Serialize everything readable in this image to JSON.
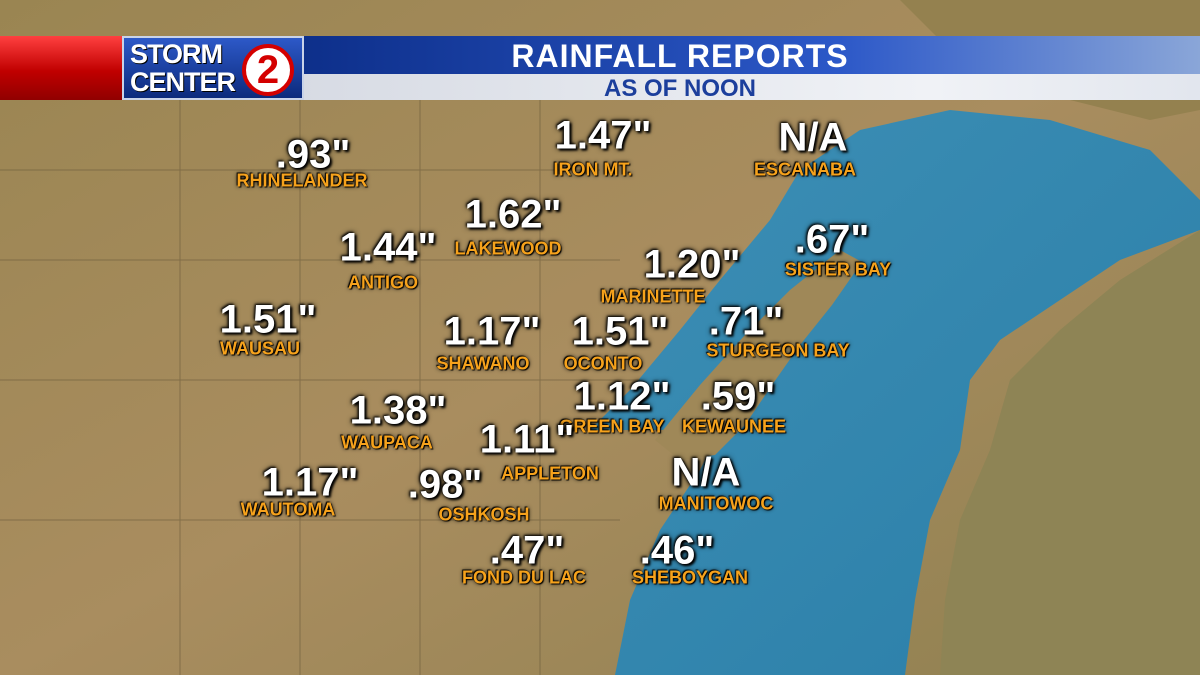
{
  "header": {
    "logo_top": "STORM",
    "logo_bottom": "CENTER",
    "logo_number": "2",
    "title": "RAINFALL REPORTS",
    "subtitle": "AS OF NOON"
  },
  "reports": [
    {
      "amount": ".93\"",
      "place": "RHINELANDER"
    },
    {
      "amount": "1.47\"",
      "place": "IRON MT."
    },
    {
      "amount": "N/A",
      "place": "ESCANABA"
    },
    {
      "amount": "1.62\"",
      "place": "LAKEWOOD"
    },
    {
      "amount": "1.44\"",
      "place": "ANTIGO"
    },
    {
      "amount": "1.20\"",
      "place": "MARINETTE"
    },
    {
      "amount": ".67\"",
      "place": "SISTER BAY"
    },
    {
      "amount": "1.51\"",
      "place": "WAUSAU"
    },
    {
      "amount": "1.17\"",
      "place": "SHAWANO"
    },
    {
      "amount": "1.51\"",
      "place": "OCONTO"
    },
    {
      "amount": ".71\"",
      "place": "STURGEON BAY"
    },
    {
      "amount": "1.38\"",
      "place": "WAUPACA"
    },
    {
      "amount": "1.12\"",
      "place": "GREEN BAY"
    },
    {
      "amount": ".59\"",
      "place": "KEWAUNEE"
    },
    {
      "amount": "1.11\"",
      "place": "APPLETON"
    },
    {
      "amount": "N/A",
      "place": "MANITOWOC"
    },
    {
      "amount": "1.17\"",
      "place": "WAUTOMA"
    },
    {
      "amount": ".98\"",
      "place": "OSHKOSH"
    },
    {
      "amount": ".47\"",
      "place": "FOND DU LAC"
    },
    {
      "amount": ".46\"",
      "place": "SHEBOYGAN"
    }
  ]
}
